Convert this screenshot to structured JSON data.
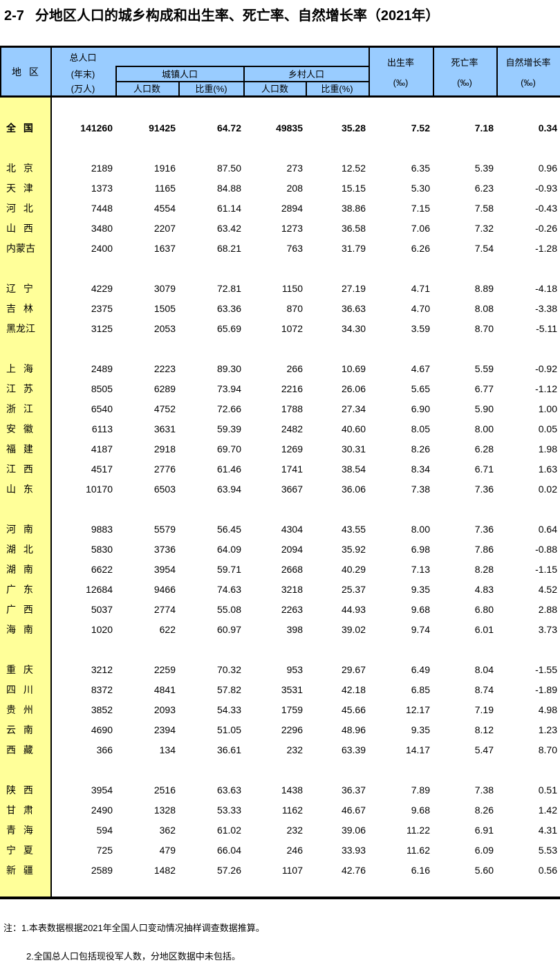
{
  "title": {
    "number": "2-7",
    "text": "分地区人口的城乡构成和出生率、死亡率、自然增长率（2021年）"
  },
  "colors": {
    "header_bg": "#99CCFF",
    "region_bg": "#FFFF99",
    "border": "#000000"
  },
  "header": {
    "region": "地 区",
    "total_pop": [
      "总人口",
      "(年末)",
      "(万人)"
    ],
    "urban_group": "城镇人口",
    "rural_group": "乡村人口",
    "urban_count": "人口数",
    "urban_share": "比重(%)",
    "rural_count": "人口数",
    "rural_share": "比重(%)",
    "birth_rate": [
      "出生率",
      "(‰)"
    ],
    "death_rate": [
      "死亡率",
      "(‰)"
    ],
    "natural_growth_rate": [
      "自然增长率",
      "(‰)"
    ]
  },
  "rows": [
    {
      "gap": true
    },
    {
      "region": "全 国",
      "bold": true,
      "values": [
        "141260",
        "91425",
        "64.72",
        "49835",
        "35.28",
        "7.52",
        "7.18",
        "0.34"
      ]
    },
    {
      "gap": true
    },
    {
      "region": "北 京",
      "values": [
        "2189",
        "1916",
        "87.50",
        "273",
        "12.52",
        "6.35",
        "5.39",
        "0.96"
      ]
    },
    {
      "region": "天 津",
      "values": [
        "1373",
        "1165",
        "84.88",
        "208",
        "15.15",
        "5.30",
        "6.23",
        "-0.93"
      ]
    },
    {
      "region": "河 北",
      "values": [
        "7448",
        "4554",
        "61.14",
        "2894",
        "38.86",
        "7.15",
        "7.58",
        "-0.43"
      ]
    },
    {
      "region": "山 西",
      "values": [
        "3480",
        "2207",
        "63.42",
        "1273",
        "36.58",
        "7.06",
        "7.32",
        "-0.26"
      ]
    },
    {
      "region": "内蒙古",
      "values": [
        "2400",
        "1637",
        "68.21",
        "763",
        "31.79",
        "6.26",
        "7.54",
        "-1.28"
      ]
    },
    {
      "gap": true
    },
    {
      "region": "辽 宁",
      "values": [
        "4229",
        "3079",
        "72.81",
        "1150",
        "27.19",
        "4.71",
        "8.89",
        "-4.18"
      ]
    },
    {
      "region": "吉 林",
      "values": [
        "2375",
        "1505",
        "63.36",
        "870",
        "36.63",
        "4.70",
        "8.08",
        "-3.38"
      ]
    },
    {
      "region": "黑龙江",
      "values": [
        "3125",
        "2053",
        "65.69",
        "1072",
        "34.30",
        "3.59",
        "8.70",
        "-5.11"
      ]
    },
    {
      "gap": true
    },
    {
      "region": "上 海",
      "values": [
        "2489",
        "2223",
        "89.30",
        "266",
        "10.69",
        "4.67",
        "5.59",
        "-0.92"
      ]
    },
    {
      "region": "江 苏",
      "values": [
        "8505",
        "6289",
        "73.94",
        "2216",
        "26.06",
        "5.65",
        "6.77",
        "-1.12"
      ]
    },
    {
      "region": "浙 江",
      "values": [
        "6540",
        "4752",
        "72.66",
        "1788",
        "27.34",
        "6.90",
        "5.90",
        "1.00"
      ]
    },
    {
      "region": "安 徽",
      "values": [
        "6113",
        "3631",
        "59.39",
        "2482",
        "40.60",
        "8.05",
        "8.00",
        "0.05"
      ]
    },
    {
      "region": "福 建",
      "values": [
        "4187",
        "2918",
        "69.70",
        "1269",
        "30.31",
        "8.26",
        "6.28",
        "1.98"
      ]
    },
    {
      "region": "江 西",
      "values": [
        "4517",
        "2776",
        "61.46",
        "1741",
        "38.54",
        "8.34",
        "6.71",
        "1.63"
      ]
    },
    {
      "region": "山 东",
      "values": [
        "10170",
        "6503",
        "63.94",
        "3667",
        "36.06",
        "7.38",
        "7.36",
        "0.02"
      ]
    },
    {
      "gap": true
    },
    {
      "region": "河 南",
      "values": [
        "9883",
        "5579",
        "56.45",
        "4304",
        "43.55",
        "8.00",
        "7.36",
        "0.64"
      ]
    },
    {
      "region": "湖 北",
      "values": [
        "5830",
        "3736",
        "64.09",
        "2094",
        "35.92",
        "6.98",
        "7.86",
        "-0.88"
      ]
    },
    {
      "region": "湖 南",
      "values": [
        "6622",
        "3954",
        "59.71",
        "2668",
        "40.29",
        "7.13",
        "8.28",
        "-1.15"
      ]
    },
    {
      "region": "广 东",
      "values": [
        "12684",
        "9466",
        "74.63",
        "3218",
        "25.37",
        "9.35",
        "4.83",
        "4.52"
      ]
    },
    {
      "region": "广 西",
      "values": [
        "5037",
        "2774",
        "55.08",
        "2263",
        "44.93",
        "9.68",
        "6.80",
        "2.88"
      ]
    },
    {
      "region": "海 南",
      "values": [
        "1020",
        "622",
        "60.97",
        "398",
        "39.02",
        "9.74",
        "6.01",
        "3.73"
      ]
    },
    {
      "gap": true
    },
    {
      "region": "重 庆",
      "values": [
        "3212",
        "2259",
        "70.32",
        "953",
        "29.67",
        "6.49",
        "8.04",
        "-1.55"
      ]
    },
    {
      "region": "四 川",
      "values": [
        "8372",
        "4841",
        "57.82",
        "3531",
        "42.18",
        "6.85",
        "8.74",
        "-1.89"
      ]
    },
    {
      "region": "贵 州",
      "values": [
        "3852",
        "2093",
        "54.33",
        "1759",
        "45.66",
        "12.17",
        "7.19",
        "4.98"
      ]
    },
    {
      "region": "云 南",
      "values": [
        "4690",
        "2394",
        "51.05",
        "2296",
        "48.96",
        "9.35",
        "8.12",
        "1.23"
      ]
    },
    {
      "region": "西 藏",
      "values": [
        "366",
        "134",
        "36.61",
        "232",
        "63.39",
        "14.17",
        "5.47",
        "8.70"
      ]
    },
    {
      "gap": true
    },
    {
      "region": "陕 西",
      "values": [
        "3954",
        "2516",
        "63.63",
        "1438",
        "36.37",
        "7.89",
        "7.38",
        "0.51"
      ]
    },
    {
      "region": "甘 肃",
      "values": [
        "2490",
        "1328",
        "53.33",
        "1162",
        "46.67",
        "9.68",
        "8.26",
        "1.42"
      ]
    },
    {
      "region": "青 海",
      "values": [
        "594",
        "362",
        "61.02",
        "232",
        "39.06",
        "11.22",
        "6.91",
        "4.31"
      ]
    },
    {
      "region": "宁 夏",
      "values": [
        "725",
        "479",
        "66.04",
        "246",
        "33.93",
        "11.62",
        "6.09",
        "5.53"
      ]
    },
    {
      "region": "新 疆",
      "values": [
        "2589",
        "1482",
        "57.26",
        "1107",
        "42.76",
        "6.16",
        "5.60",
        "0.56"
      ]
    }
  ],
  "notes": {
    "line1": "注：1.本表数据根据2021年全国人口变动情况抽样调查数据推算。",
    "line2": "2.全国总人口包括现役军人数，分地区数据中未包括。"
  }
}
